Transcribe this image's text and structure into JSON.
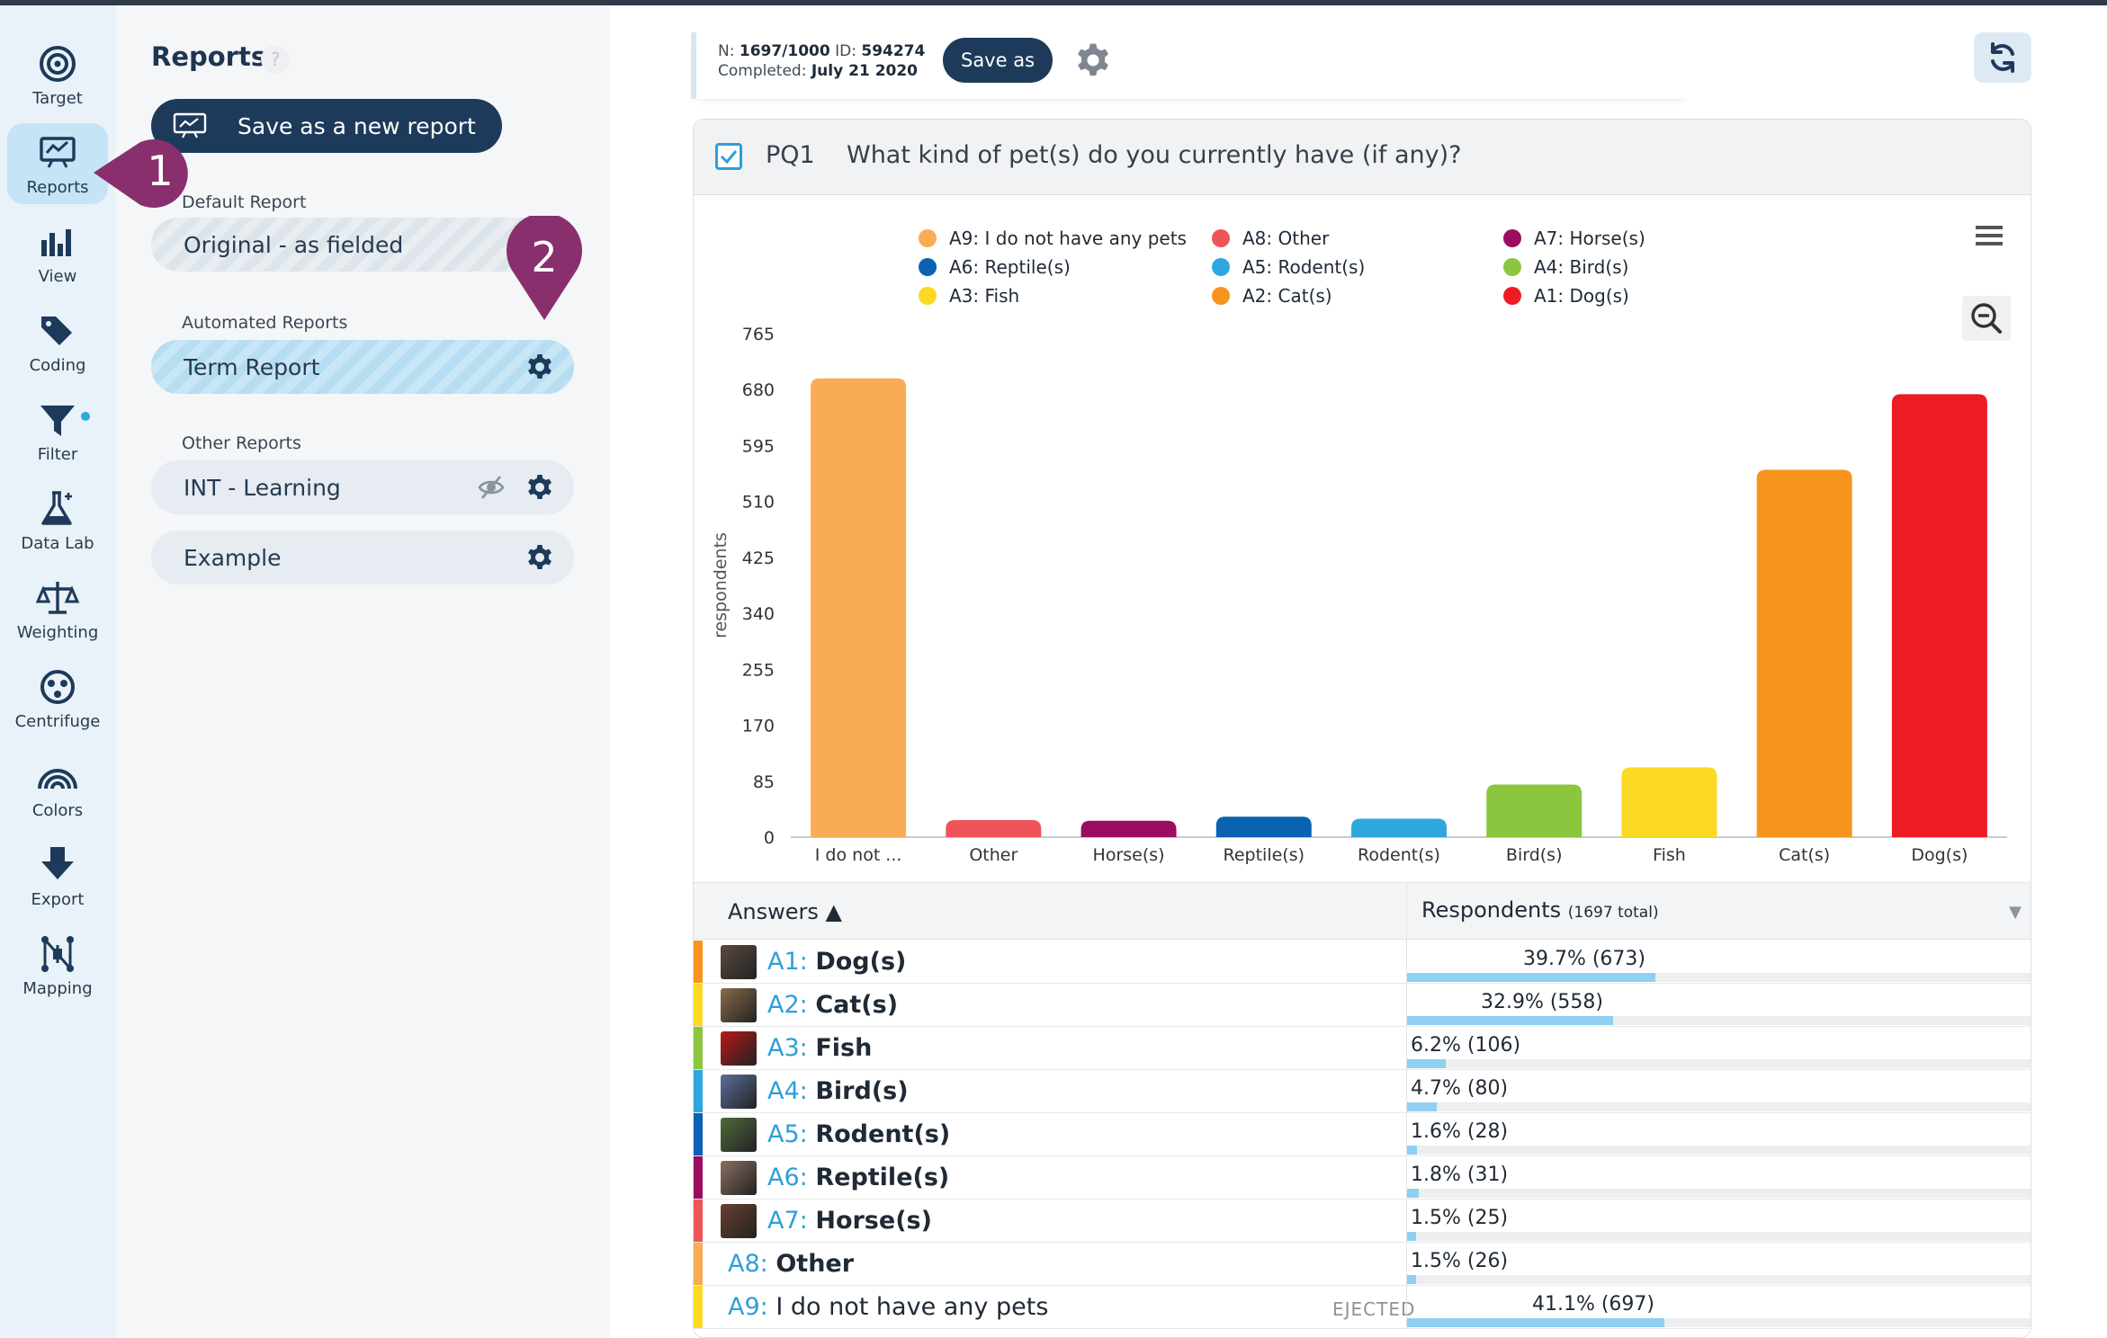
{
  "rail": {
    "items": [
      {
        "label": "Target",
        "icon": "target-icon",
        "active": false
      },
      {
        "label": "Reports",
        "icon": "presentation-icon",
        "active": true
      },
      {
        "label": "View",
        "icon": "bar-chart-icon",
        "active": false
      },
      {
        "label": "Coding",
        "icon": "tags-icon",
        "active": false
      },
      {
        "label": "Filter",
        "icon": "filter-icon",
        "active": false
      },
      {
        "label": "Data Lab",
        "icon": "flask-icon",
        "active": false
      },
      {
        "label": "Weighting",
        "icon": "scale-icon",
        "active": false
      },
      {
        "label": "Centrifuge",
        "icon": "centrifuge-icon",
        "active": false
      },
      {
        "label": "Colors",
        "icon": "rainbow-icon",
        "active": false
      },
      {
        "label": "Export",
        "icon": "download-arrow-icon",
        "active": false
      },
      {
        "label": "Mapping",
        "icon": "mapping-icon",
        "active": false
      }
    ]
  },
  "panel": {
    "title": "Reports",
    "help": "?",
    "save_new_label": "Save as a new report",
    "default_label": "Default Report",
    "default_report": "Original - as fielded",
    "automated_label": "Automated Reports",
    "automated_report": "Term Report",
    "other_label": "Other Reports",
    "other_reports": [
      "INT - Learning",
      "Example"
    ]
  },
  "markers": {
    "one": "1",
    "two": "2",
    "color": "#8a2f6e"
  },
  "info": {
    "n_label": "N:",
    "n_value": "1697/1000",
    "id_label": "ID:",
    "id_value": "594274",
    "completed_label": "Completed:",
    "completed_value": "July 21 2020",
    "save_as_label": "Save as"
  },
  "question": {
    "id": "PQ1",
    "text": "What kind of pet(s) do you currently have (if any)?"
  },
  "legend": [
    {
      "label": "A9: I do not have any pets",
      "color": "#f9ab55"
    },
    {
      "label": "A8: Other",
      "color": "#ef5459"
    },
    {
      "label": "A7: Horse(s)",
      "color": "#9b0d61"
    },
    {
      "label": "A6: Reptile(s)",
      "color": "#0a62b2"
    },
    {
      "label": "A5: Rodent(s)",
      "color": "#2ea7df"
    },
    {
      "label": "A4: Bird(s)",
      "color": "#8cc63f"
    },
    {
      "label": "A3: Fish",
      "color": "#fcd922"
    },
    {
      "label": "A2: Cat(s)",
      "color": "#f7941d"
    },
    {
      "label": "A1: Dog(s)",
      "color": "#ed1c24"
    }
  ],
  "chart_data": {
    "type": "bar",
    "categories": [
      "I do not ...",
      "Other",
      "Horse(s)",
      "Reptile(s)",
      "Rodent(s)",
      "Bird(s)",
      "Fish",
      "Cat(s)",
      "Dog(s)"
    ],
    "values": [
      697,
      26,
      25,
      31,
      28,
      80,
      106,
      558,
      673
    ],
    "colors": [
      "#f9ab55",
      "#ef5459",
      "#9b0d61",
      "#0a62b2",
      "#2ea7df",
      "#8cc63f",
      "#fcd922",
      "#f7941d",
      "#ed1c24"
    ],
    "ylabel": "respondents",
    "yticks": [
      0,
      85,
      170,
      255,
      340,
      425,
      510,
      595,
      680,
      765
    ],
    "ylim": [
      0,
      765
    ],
    "grid": false,
    "legend_position": "top"
  },
  "table": {
    "answers_header": "Answers ▲",
    "respondents_header": "Respondents",
    "respondents_total": "(1697 total)",
    "rows": [
      {
        "code": "A1:",
        "name": "Dog(s)",
        "pct": "39.7% (673)",
        "frac": 0.397,
        "color": "#f7941d",
        "thumb": "#5b4a3e",
        "bold": true,
        "eject": ""
      },
      {
        "code": "A2:",
        "name": "Cat(s)",
        "pct": "32.9% (558)",
        "frac": 0.329,
        "color": "#fcd922",
        "thumb": "#8a6a4a",
        "bold": true,
        "eject": ""
      },
      {
        "code": "A3:",
        "name": "Fish",
        "pct": "6.2% (106)",
        "frac": 0.062,
        "color": "#8cc63f",
        "thumb": "#b81818",
        "bold": true,
        "eject": ""
      },
      {
        "code": "A4:",
        "name": "Bird(s)",
        "pct": "4.7% (80)",
        "frac": 0.047,
        "color": "#2ea7df",
        "thumb": "#5c6f9a",
        "bold": true,
        "eject": ""
      },
      {
        "code": "A5:",
        "name": "Rodent(s)",
        "pct": "1.6% (28)",
        "frac": 0.016,
        "color": "#0a62b2",
        "thumb": "#4f6a3a",
        "bold": true,
        "eject": ""
      },
      {
        "code": "A6:",
        "name": "Reptile(s)",
        "pct": "1.8% (31)",
        "frac": 0.018,
        "color": "#9b0d61",
        "thumb": "#8a7060",
        "bold": true,
        "eject": ""
      },
      {
        "code": "A7:",
        "name": "Horse(s)",
        "pct": "1.5% (25)",
        "frac": 0.015,
        "color": "#ef5459",
        "thumb": "#6a4030",
        "bold": true,
        "eject": ""
      },
      {
        "code": "A8:",
        "name": "Other",
        "pct": "1.5% (26)",
        "frac": 0.015,
        "color": "#f9ab55",
        "thumb": "",
        "bold": true,
        "eject": ""
      },
      {
        "code": "A9:",
        "name": "I do not have any pets",
        "pct": "41.1% (697)",
        "frac": 0.411,
        "color": "#fcd922",
        "thumb": "",
        "bold": false,
        "eject": "EJECTED"
      }
    ]
  }
}
